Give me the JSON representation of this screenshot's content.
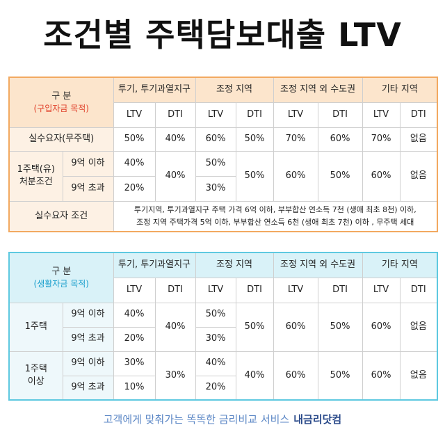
{
  "title": "조건별 주택담보대출 LTV",
  "table1": {
    "head_label": "구 분",
    "head_sub": "(구입자금 목적)",
    "zones": [
      "투기, 투기과열지구",
      "조정 지역",
      "조정 지역 외 수도권",
      "기타 지역"
    ],
    "ltv": "LTV",
    "dti": "DTI",
    "row1": {
      "label": "실수요자(무주택)",
      "values": [
        "50%",
        "40%",
        "60%",
        "50%",
        "70%",
        "60%",
        "70%",
        "없음"
      ]
    },
    "row2": {
      "label_line1": "1주택(유)",
      "label_line2": "처분조건",
      "sub_a": "9억 이하",
      "sub_b": "9억 초과",
      "z1_ltv_a": "40%",
      "z1_ltv_b": "20%",
      "z1_dti": "40%",
      "z2_ltv_a": "50%",
      "z2_ltv_b": "30%",
      "z2_dti": "50%",
      "z3_ltv": "60%",
      "z3_dti": "50%",
      "z4_ltv": "60%",
      "z4_dti": "없음"
    },
    "cond_label": "실수요자 조건",
    "cond_line1": "투기지역, 투기과열지구 주택 가격 6억 이하, 부부합산 연소득 7천 (생애 최초 8천) 이하,",
    "cond_line2": "조정 지역 주택가격 5억 이하, 부부합산 연소득 6천 (생애 최초 7천) 이하 , 무주택 세대"
  },
  "table2": {
    "head_label": "구 분",
    "head_sub": "(생활자금 목적)",
    "zones": [
      "투기, 투기과열지구",
      "조정 지역",
      "조정 지역 외 수도권",
      "기타 지역"
    ],
    "ltv": "LTV",
    "dti": "DTI",
    "rowA": {
      "label": "1주택",
      "sub_a": "9억 이하",
      "sub_b": "9억 초과",
      "z1_ltv_a": "40%",
      "z1_ltv_b": "20%",
      "z1_dti": "40%",
      "z2_ltv_a": "50%",
      "z2_ltv_b": "30%",
      "z2_dti": "50%",
      "z3_ltv": "60%",
      "z3_dti": "50%",
      "z4_ltv": "60%",
      "z4_dti": "없음"
    },
    "rowB": {
      "label_line1": "1주택",
      "label_line2": "이상",
      "sub_a": "9억 이하",
      "sub_b": "9억 초과",
      "z1_ltv_a": "30%",
      "z1_ltv_b": "10%",
      "z1_dti": "30%",
      "z2_ltv_a": "40%",
      "z2_ltv_b": "20%",
      "z2_dti": "40%",
      "z3_ltv": "60%",
      "z3_dti": "50%",
      "z4_ltv": "60%",
      "z4_dti": "없음"
    }
  },
  "footer": {
    "text": "고객에게 맞춰가는 똑똑한 금리비교 서비스",
    "brand": "내금리닷컴"
  }
}
